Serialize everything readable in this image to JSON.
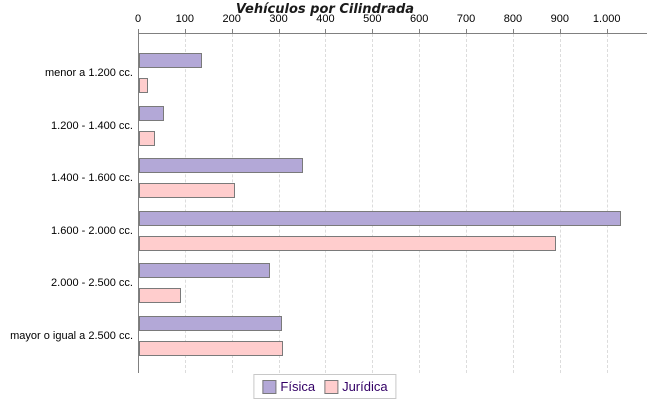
{
  "title": "Vehículos por Cilindrada",
  "chart_data": {
    "type": "bar",
    "orientation": "horizontal",
    "title": "Vehículos por Cilindrada",
    "xlabel": "",
    "ylabel": "",
    "axis_position": "top",
    "grid": "vertical-dashed",
    "legend_position": "bottom-center",
    "xlim": [
      0,
      1085
    ],
    "x_tick_labels": [
      "0",
      "100",
      "200",
      "300",
      "400",
      "500",
      "600",
      "700",
      "800",
      "900",
      "1.000"
    ],
    "x_tick_values": [
      0,
      100,
      200,
      300,
      400,
      500,
      600,
      700,
      800,
      900,
      1000
    ],
    "categories": [
      "menor a 1.200 cc.",
      "1.200 - 1.400 cc.",
      "1.400 - 1.600 cc.",
      "1.600 - 2.000 cc.",
      "2.000 - 2.500 cc.",
      "mayor o igual a 2.500 cc."
    ],
    "series": [
      {
        "name": "Física",
        "color": "#b3a8d7",
        "values": [
          130,
          50,
          345,
          1025,
          275,
          300
        ]
      },
      {
        "name": "Jurídica",
        "color": "#ffcdcd",
        "values": [
          15,
          30,
          200,
          885,
          85,
          303
        ]
      }
    ]
  },
  "colors": {
    "bar_border": "#7a7a7a",
    "axis_line": "#808080",
    "tick_mark": "#808080",
    "gridline": "#dcdcdc",
    "title_text": "#1a1a1a",
    "label_text": "#000000",
    "legend_text": "#330066",
    "legend_border": "#c8c8c8",
    "background": "#ffffff"
  }
}
